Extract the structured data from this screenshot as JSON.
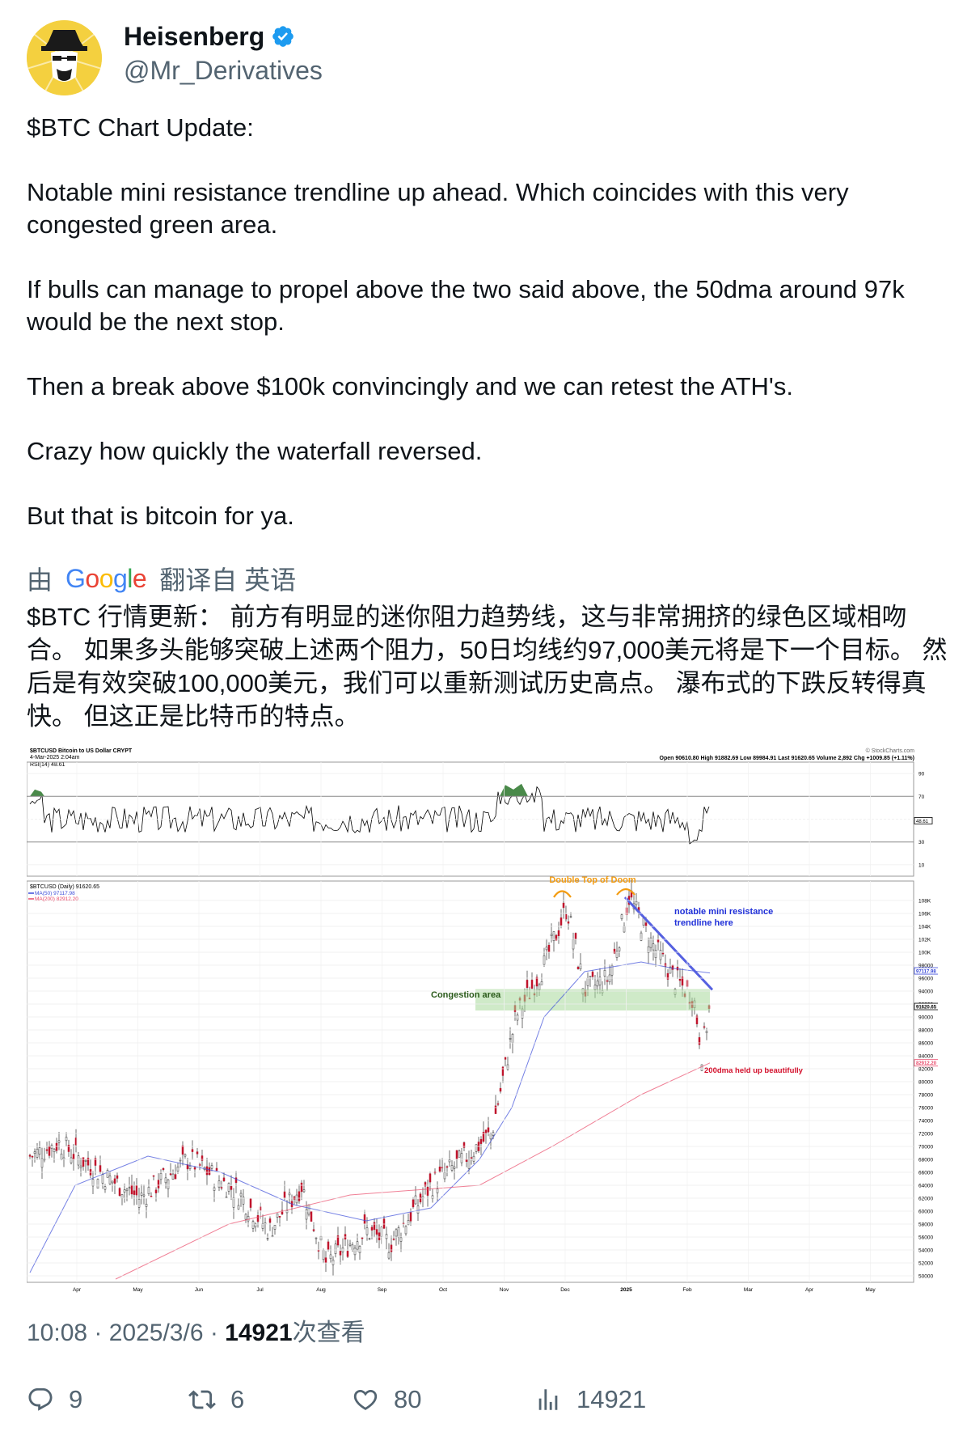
{
  "author": {
    "display_name": "Heisenberg",
    "handle": "@Mr_Derivatives"
  },
  "tweet": {
    "paragraphs": [
      "$BTC Chart Update:",
      "Notable mini resistance trendline up ahead. Which coincides with this very congested green area.",
      "If bulls can manage to propel above the two said above, the 50dma around 97k would be the next stop.",
      "Then a break above $100k convincingly and we can retest the ATH's.",
      "Crazy how quickly the waterfall reversed.",
      "But that is bitcoin for ya."
    ]
  },
  "translation": {
    "prefix": "由",
    "provider": "Google",
    "suffix": "翻译自 英语",
    "text": "$BTC 行情更新： 前方有明显的迷你阻力趋势线，这与非常拥挤的绿色区域相吻合。 如果多头能够突破上述两个阻力，50日均线约97,000美元将是下一个目标。 然后是有效突破100,000美元，我们可以重新测试历史高点。 瀑布式的下跌反转得真快。 但这正是比特币的特点。"
  },
  "chart_data": {
    "type": "line",
    "header_left": "$BTCUSD Bitcoin to US Dollar  CRYPT",
    "header_date": "4-Mar-2025 2:04am",
    "header_right": "Open 90610.80  High 91882.69  Low 89984.91  Last 91620.65  Volume 2,892  Chg +1009.85 (+1.11%)",
    "source": "© StockCharts.com",
    "rsi_label": "RSI(14) 48.61",
    "rsi_ticks": [
      "90",
      "70",
      "50",
      "30",
      "10"
    ],
    "rsi_last": "48.61",
    "price_label": "$BTCUSD (Daily) 91620.65",
    "ma50_label": "MA(50) 97117.98",
    "ma200_label": "MA(200) 82912.20",
    "price_ticks": [
      "108K",
      "106K",
      "104K",
      "102K",
      "100K",
      "98000",
      "96000",
      "94000",
      "92000",
      "90000",
      "88000",
      "86000",
      "84000",
      "82000",
      "80000",
      "78000",
      "76000",
      "74000",
      "72000",
      "70000",
      "68000",
      "66000",
      "64000",
      "62000",
      "60000",
      "58000",
      "56000",
      "54000",
      "52000",
      "50000"
    ],
    "price_ylim": [
      49000,
      111000
    ],
    "last_price_tag": "91620.65",
    "ma50_tag": "97117.98",
    "ma200_tag": "82912.20",
    "x_ticks": [
      "Apr",
      "May",
      "Jun",
      "Jul",
      "Aug",
      "Sep",
      "Oct",
      "Nov",
      "Dec",
      "2025",
      "Feb",
      "Mar",
      "Apr",
      "May"
    ],
    "annotations": {
      "double_top": "Double Top of Doom",
      "resistance": [
        "notable mini resistance",
        "trendline here"
      ],
      "congestion": "Congestion area",
      "ma200_note": "200dma held up beautifully"
    },
    "colors": {
      "price": "#c0142c",
      "ma50": "#3b4bd8",
      "ma200": "#e94a6a",
      "congestion": "#a8d99a",
      "trendline": "#5560e0",
      "double_top": "#f39c12"
    }
  },
  "meta": {
    "time": "10:08 · 2025/3/6 · ",
    "views_count": "14921",
    "views_label": "次查看"
  },
  "actions": {
    "replies": "9",
    "reposts": "6",
    "likes": "80",
    "views": "14921"
  }
}
